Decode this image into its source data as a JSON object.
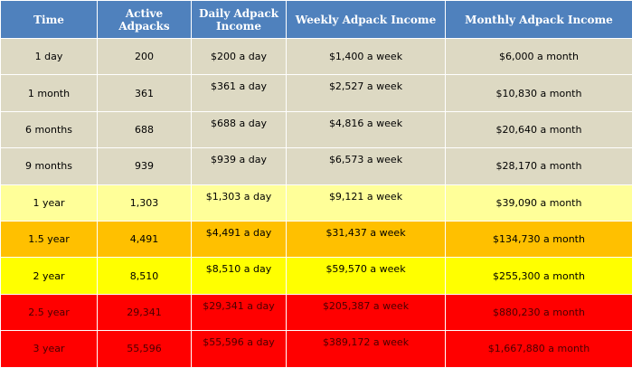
{
  "table": {
    "headers": [
      "Time",
      "Active Adpacks",
      "Daily Adpack Income",
      "Weekly Adpack Income",
      "Monthly Adpack Income"
    ],
    "row_colors": {
      "gray": "#ddd9c3",
      "pale": "#ffff99",
      "orange": "#ffc000",
      "yellow": "#ffff00",
      "red": "#ff0000",
      "header": "#4f81bd"
    },
    "rows": [
      {
        "time": "1 day",
        "active": "200",
        "daily": "$200 a day",
        "weekly": "$1,400 a week",
        "monthly": "$6,000 a month",
        "style": "gray"
      },
      {
        "time": "1 month",
        "active": "361",
        "daily": "$361 a day",
        "weekly": "$2,527 a week",
        "monthly": "$10,830  a month",
        "style": "gray"
      },
      {
        "time": "6 months",
        "active": "688",
        "daily": "$688 a day",
        "weekly": "$4,816 a week",
        "monthly": "$20,640  a month",
        "style": "gray"
      },
      {
        "time": "9 months",
        "active": "939",
        "daily": "$939 a day",
        "weekly": "$6,573 a week",
        "monthly": "$28,170  a month",
        "style": "gray"
      },
      {
        "time": "1 year",
        "active": "1,303",
        "daily": "$1,303 a day",
        "weekly": "$9,121 a week",
        "monthly": "$39,090  a month",
        "style": "pale"
      },
      {
        "time": "1.5 year",
        "active": "4,491",
        "daily": "$4,491 a day",
        "weekly": "$31,437 a week",
        "monthly": "$134,730  a month",
        "style": "orange"
      },
      {
        "time": "2 year",
        "active": "8,510",
        "daily": "$8,510 a day",
        "weekly": "$59,570 a week",
        "monthly": "$255,300  a month",
        "style": "yellow"
      },
      {
        "time": "2.5 year",
        "active": "29,341",
        "daily": "$29,341 a day",
        "weekly": "$205,387 a week",
        "monthly": "$880,230  a month",
        "style": "red"
      },
      {
        "time": "3 year",
        "active": "55,596",
        "daily": "$55,596 a day",
        "weekly": "$389,172  a week",
        "monthly": "$1,667,880  a month",
        "style": "red"
      }
    ]
  }
}
